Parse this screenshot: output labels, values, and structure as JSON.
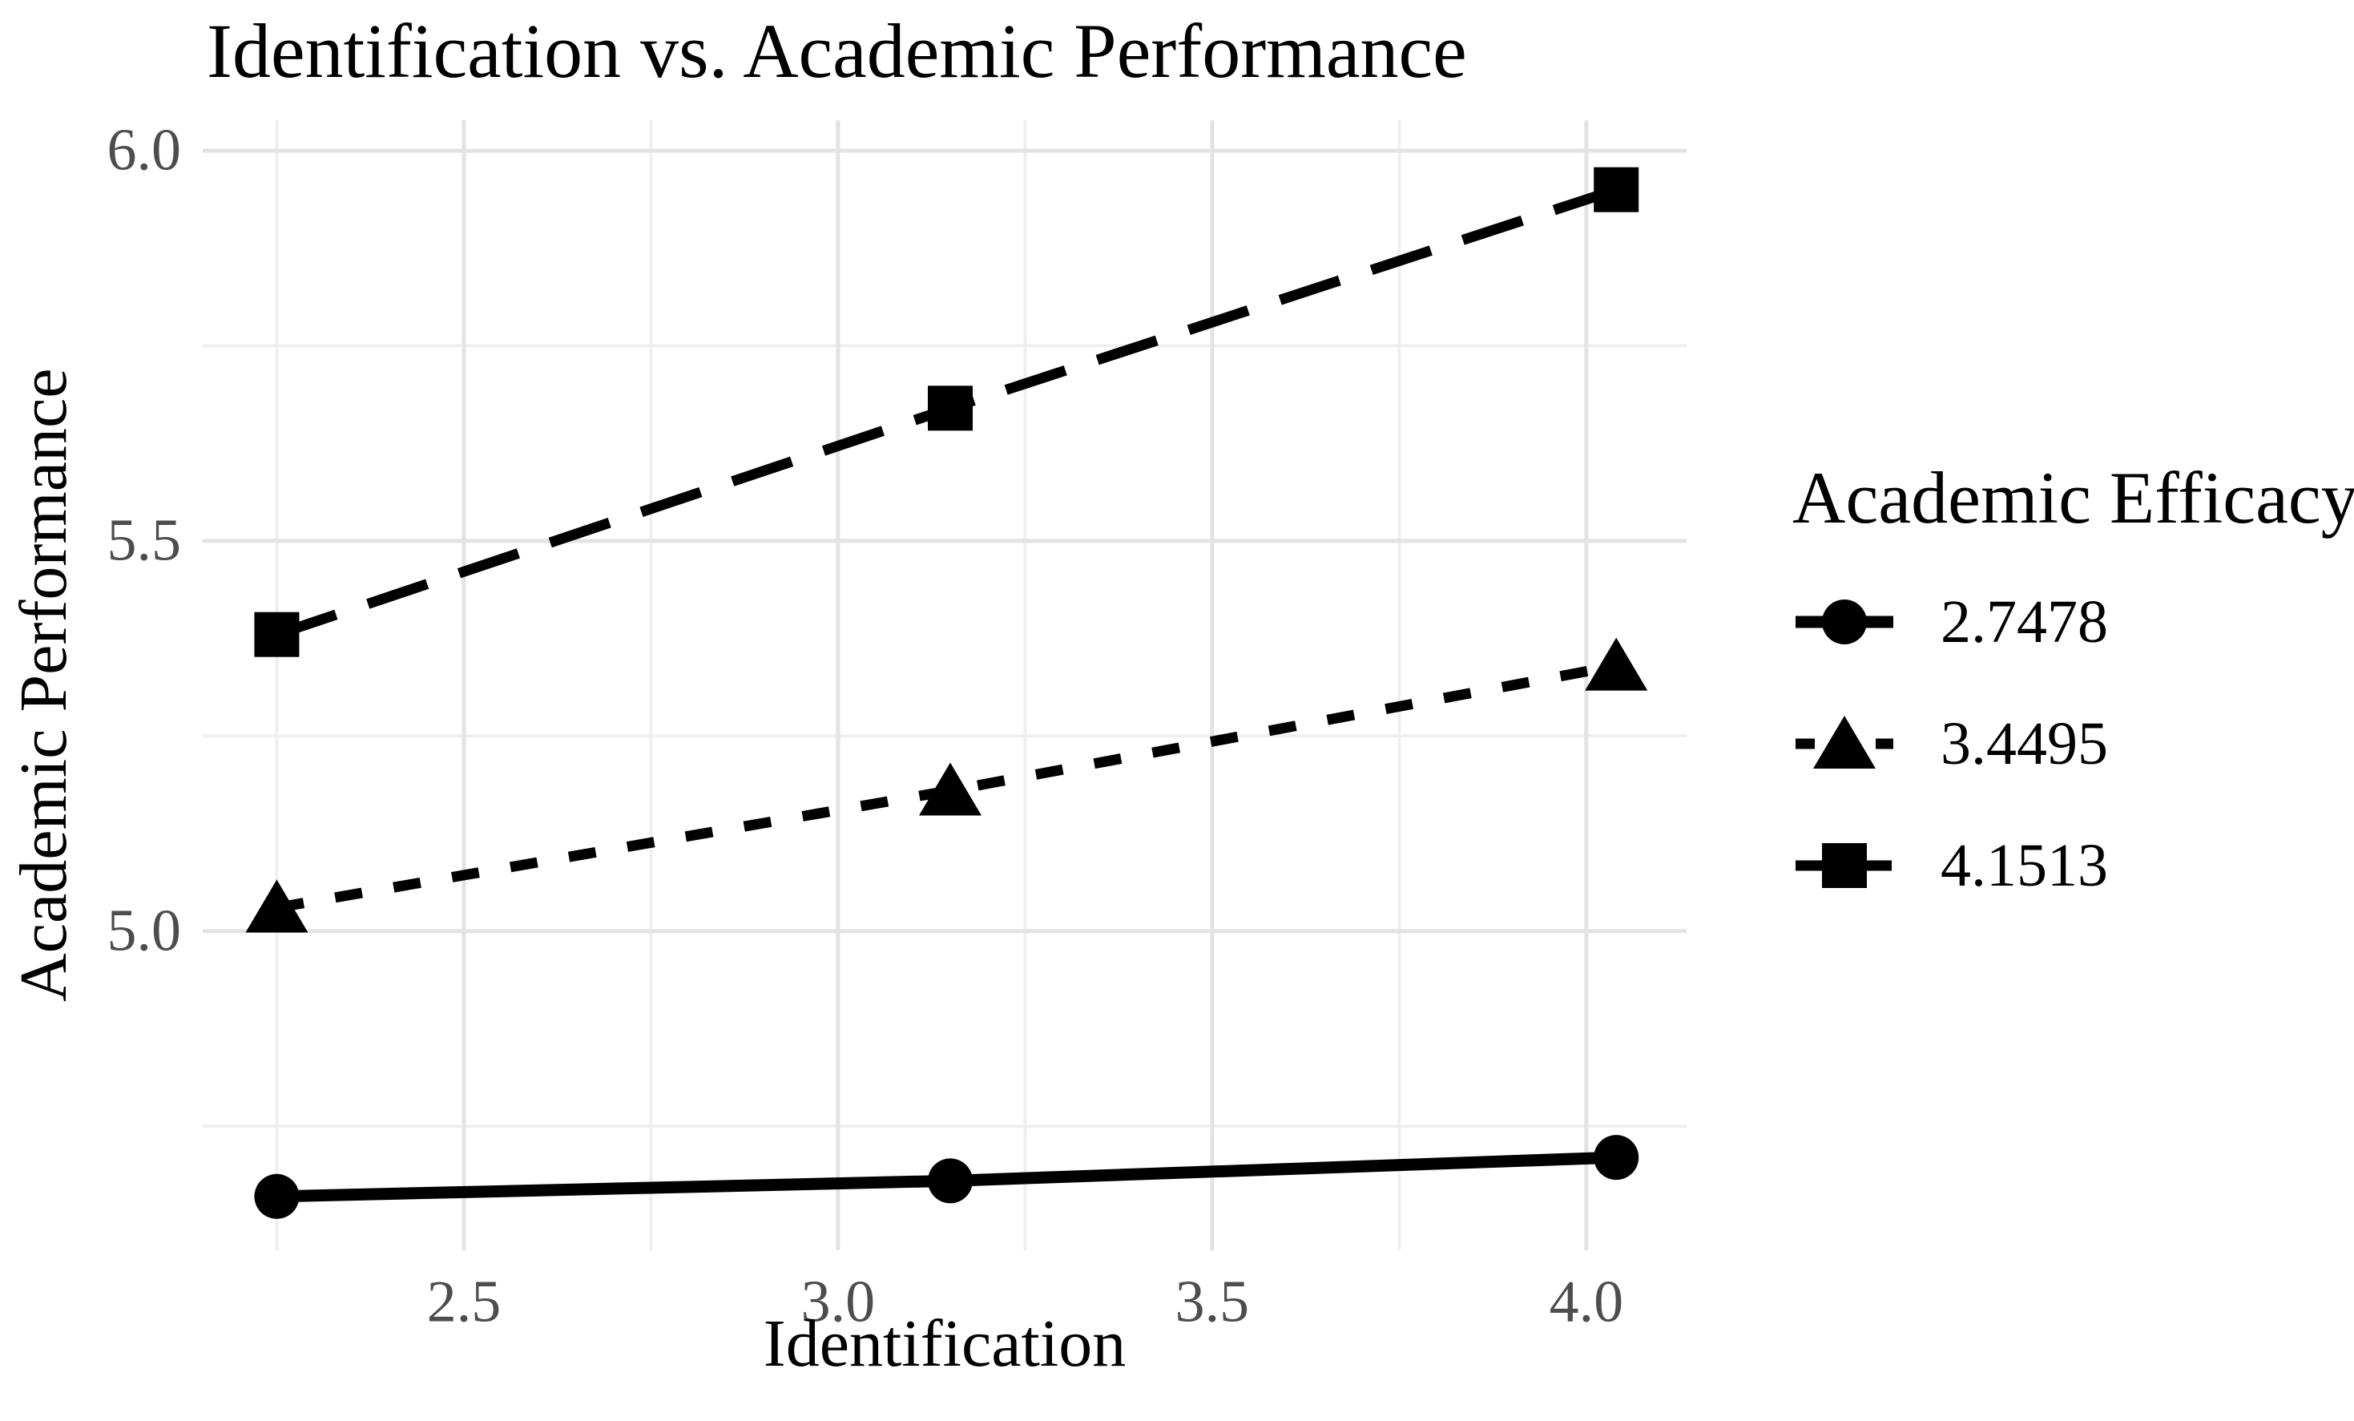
{
  "chart_data": {
    "type": "line",
    "title": "Identification vs. Academic Performance",
    "xlabel": "Identification",
    "ylabel": "Academic Performance",
    "legend_title": "Academic Efficacy",
    "legend_position": "right",
    "grid": true,
    "x_ticks": [
      2.5,
      3.0,
      3.5,
      4.0
    ],
    "y_ticks": [
      5.0,
      5.5,
      6.0
    ],
    "x_minor": [
      2.25,
      2.75,
      3.25,
      3.75
    ],
    "y_minor": [
      4.75,
      5.25,
      5.75
    ],
    "xlim": [
      2.151,
      4.134
    ],
    "ylim": [
      4.591,
      6.039
    ],
    "x": [
      2.25,
      3.15,
      4.04
    ],
    "series": [
      {
        "name": "2.7478",
        "marker": "circle",
        "linestyle": "solid",
        "values": [
          4.66,
          4.68,
          4.71
        ]
      },
      {
        "name": "3.4495",
        "marker": "triangle",
        "linestyle": "dotted",
        "values": [
          5.03,
          5.18,
          5.34
        ]
      },
      {
        "name": "4.1513",
        "marker": "square",
        "linestyle": "dashed",
        "values": [
          5.38,
          5.67,
          5.95
        ]
      }
    ],
    "colors": {
      "series_color": "#000000",
      "grid_major": "#e3e3e3",
      "grid_minor": "#efefef",
      "tick_text": "#4d4d4d",
      "text": "#000000",
      "background": "#ffffff"
    }
  }
}
